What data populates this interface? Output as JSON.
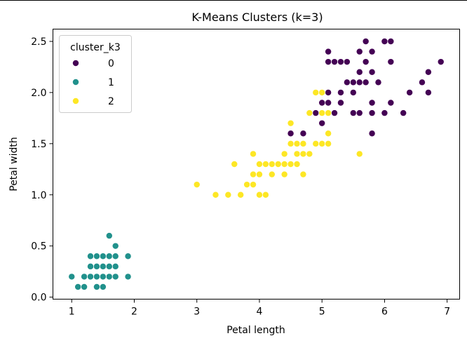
{
  "chart_data": {
    "type": "scatter",
    "title": "K-Means Clusters (k=3)",
    "xlabel": "Petal length",
    "ylabel": "Petal width",
    "xlim": [
      0.7,
      7.2
    ],
    "ylim": [
      -0.02,
      2.62
    ],
    "xticks": [
      1,
      2,
      3,
      4,
      5,
      6,
      7
    ],
    "xtick_labels": [
      "1",
      "2",
      "3",
      "4",
      "5",
      "6",
      "7"
    ],
    "yticks": [
      0.0,
      0.5,
      1.0,
      1.5,
      2.0,
      2.5
    ],
    "ytick_labels": [
      "0.0",
      "0.5",
      "1.0",
      "1.5",
      "2.0",
      "2.5"
    ],
    "grid": false,
    "legend": {
      "title": "cluster_k3",
      "placement": "top-left"
    },
    "series": [
      {
        "name": "0",
        "color": "#440154",
        "points": [
          [
            5.1,
            2.4
          ],
          [
            5.1,
            2.3
          ],
          [
            5.2,
            2.3
          ],
          [
            5.3,
            2.3
          ],
          [
            5.4,
            2.3
          ],
          [
            5.6,
            2.4
          ],
          [
            5.6,
            2.2
          ],
          [
            5.7,
            2.5
          ],
          [
            5.7,
            2.3
          ],
          [
            5.6,
            2.1
          ],
          [
            5.5,
            2.1
          ],
          [
            5.4,
            2.1
          ],
          [
            5.5,
            2.0
          ],
          [
            5.3,
            2.0
          ],
          [
            5.1,
            2.0
          ],
          [
            5.1,
            1.9
          ],
          [
            5.3,
            1.9
          ],
          [
            5.0,
            1.9
          ],
          [
            5.2,
            1.8
          ],
          [
            5.5,
            1.8
          ],
          [
            5.6,
            1.8
          ],
          [
            5.7,
            2.1
          ],
          [
            5.8,
            2.2
          ],
          [
            5.8,
            2.4
          ],
          [
            5.8,
            1.8
          ],
          [
            5.9,
            2.1
          ],
          [
            6.0,
            2.5
          ],
          [
            6.1,
            2.5
          ],
          [
            6.1,
            2.3
          ],
          [
            6.0,
            1.8
          ],
          [
            6.1,
            1.9
          ],
          [
            6.3,
            1.8
          ],
          [
            6.4,
            2.0
          ],
          [
            6.6,
            2.1
          ],
          [
            6.7,
            2.2
          ],
          [
            6.7,
            2.0
          ],
          [
            6.9,
            2.3
          ],
          [
            5.8,
            1.6
          ],
          [
            4.8,
            1.8
          ],
          [
            4.9,
            1.8
          ],
          [
            4.5,
            1.6
          ],
          [
            4.7,
            1.6
          ],
          [
            4.8,
            1.4
          ],
          [
            4.9,
            1.5
          ],
          [
            5.0,
            1.7
          ],
          [
            5.8,
            1.9
          ]
        ]
      },
      {
        "name": "1",
        "color": "#21918c",
        "points": [
          [
            1.0,
            0.2
          ],
          [
            1.1,
            0.1
          ],
          [
            1.2,
            0.2
          ],
          [
            1.3,
            0.2
          ],
          [
            1.3,
            0.3
          ],
          [
            1.3,
            0.4
          ],
          [
            1.4,
            0.1
          ],
          [
            1.4,
            0.2
          ],
          [
            1.4,
            0.3
          ],
          [
            1.5,
            0.1
          ],
          [
            1.5,
            0.2
          ],
          [
            1.5,
            0.3
          ],
          [
            1.5,
            0.4
          ],
          [
            1.6,
            0.2
          ],
          [
            1.6,
            0.4
          ],
          [
            1.6,
            0.6
          ],
          [
            1.7,
            0.2
          ],
          [
            1.7,
            0.3
          ],
          [
            1.7,
            0.4
          ],
          [
            1.7,
            0.5
          ],
          [
            1.9,
            0.2
          ],
          [
            1.9,
            0.4
          ],
          [
            1.4,
            0.4
          ],
          [
            1.6,
            0.3
          ],
          [
            1.5,
            0.2
          ],
          [
            1.2,
            0.1
          ]
        ]
      },
      {
        "name": "2",
        "color": "#fde725",
        "points": [
          [
            3.0,
            1.1
          ],
          [
            3.3,
            1.0
          ],
          [
            3.5,
            1.0
          ],
          [
            3.6,
            1.3
          ],
          [
            3.7,
            1.0
          ],
          [
            3.8,
            1.1
          ],
          [
            3.9,
            1.1
          ],
          [
            3.9,
            1.2
          ],
          [
            3.9,
            1.4
          ],
          [
            4.0,
            1.0
          ],
          [
            4.0,
            1.2
          ],
          [
            4.0,
            1.3
          ],
          [
            4.1,
            1.0
          ],
          [
            4.1,
            1.3
          ],
          [
            4.2,
            1.2
          ],
          [
            4.2,
            1.3
          ],
          [
            4.3,
            1.3
          ],
          [
            4.4,
            1.2
          ],
          [
            4.4,
            1.3
          ],
          [
            4.4,
            1.4
          ],
          [
            4.5,
            1.3
          ],
          [
            4.5,
            1.5
          ],
          [
            4.5,
            1.7
          ],
          [
            4.6,
            1.3
          ],
          [
            4.6,
            1.4
          ],
          [
            4.6,
            1.5
          ],
          [
            4.7,
            1.2
          ],
          [
            4.7,
            1.4
          ],
          [
            4.7,
            1.5
          ],
          [
            4.8,
            1.8
          ],
          [
            4.9,
            1.5
          ],
          [
            4.9,
            2.0
          ],
          [
            5.0,
            1.5
          ],
          [
            5.0,
            2.0
          ],
          [
            5.1,
            1.5
          ],
          [
            5.1,
            1.6
          ],
          [
            5.6,
            1.4
          ],
          [
            4.8,
            1.4
          ],
          [
            5.0,
            1.8
          ],
          [
            5.1,
            1.8
          ],
          [
            4.3,
            1.3
          ],
          [
            4.4,
            1.2
          ]
        ]
      }
    ]
  }
}
